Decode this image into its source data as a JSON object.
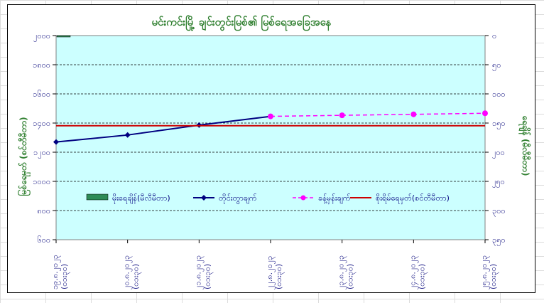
{
  "chart_data": {
    "type": "line",
    "title": "မင်းကင်းမြို့ ချင်းတွင်းမြစ်၏ မြစ်ရေအခြေအနေ",
    "ylabel_left": "မြစ်ရေမှတ် (စင်တီမီတာ)",
    "ylabel_right": "ရေချိန် (မီလီမီတာ)",
    "y_left_ticks": [
      "၂၀၀၀",
      "၁၈၀၀",
      "၁၆၀၀",
      "၁၄၀၀",
      "၁၂၀၀",
      "၁၀၀၀",
      "၈၀၀",
      "၆၀၀"
    ],
    "y_left_range": [
      600,
      2000
    ],
    "y_right_ticks": [
      "၀",
      "၅၀",
      "၁၀၀",
      "၁၅၀",
      "၂၀၀",
      "၂၅၀",
      "၃၀၀",
      "၃၅၀"
    ],
    "y_right_range": [
      0,
      350
    ],
    "x_labels": [
      [
        "၁၉.၈.၂၀၂၃",
        "(၀၁း၃၀)"
      ],
      [
        "၂၀.၈.၂၀၂၃",
        "(၀၁း၃၀)"
      ],
      [
        "၂၁.၈.၂၀၂၃",
        "(၀၁း၃၀)"
      ],
      [
        "၂၂.၈.၂၀၂၃",
        "(၀၁း၃၀)"
      ],
      [
        "၂၃.၈.၂၀၂၃",
        "(၀၁း၃၀)"
      ],
      [
        "၂၄.၈.၂၀၂၃",
        "(၀၁း၃၀)"
      ],
      [
        "၂၅.၈.၂၀၂၃",
        "(၀၁း၃၀)"
      ]
    ],
    "grid": true,
    "legend_position": "inside-bottom",
    "series": [
      {
        "name": "မိုးရေချိန်(မီလီမီတာ)",
        "kind": "bar",
        "axis": "right",
        "color": "#2e8b57",
        "values": [
          2,
          null,
          null,
          null,
          null,
          null,
          null
        ]
      },
      {
        "name": "တိုင်းတွာချက်",
        "kind": "line",
        "axis": "left",
        "color": "#000080",
        "values": [
          1270,
          1318,
          1386,
          1446,
          null,
          null,
          null
        ]
      },
      {
        "name": "ခန့်မှန်းချက်",
        "kind": "dashed",
        "axis": "left",
        "color": "#ff00ff",
        "values": [
          null,
          null,
          null,
          1446,
          1453,
          1460,
          1467
        ]
      },
      {
        "name": "စိုးရိမ်ရေမှတ်(စင်တီမီတာ)",
        "kind": "hline",
        "axis": "left",
        "color": "#cc0000",
        "value": 1382
      }
    ],
    "colors": {
      "plot_bg": "#ccffff",
      "title": "#2f7f2f",
      "axis_text": "#2b2b8f",
      "axis_title": "#2f7f2f"
    }
  }
}
